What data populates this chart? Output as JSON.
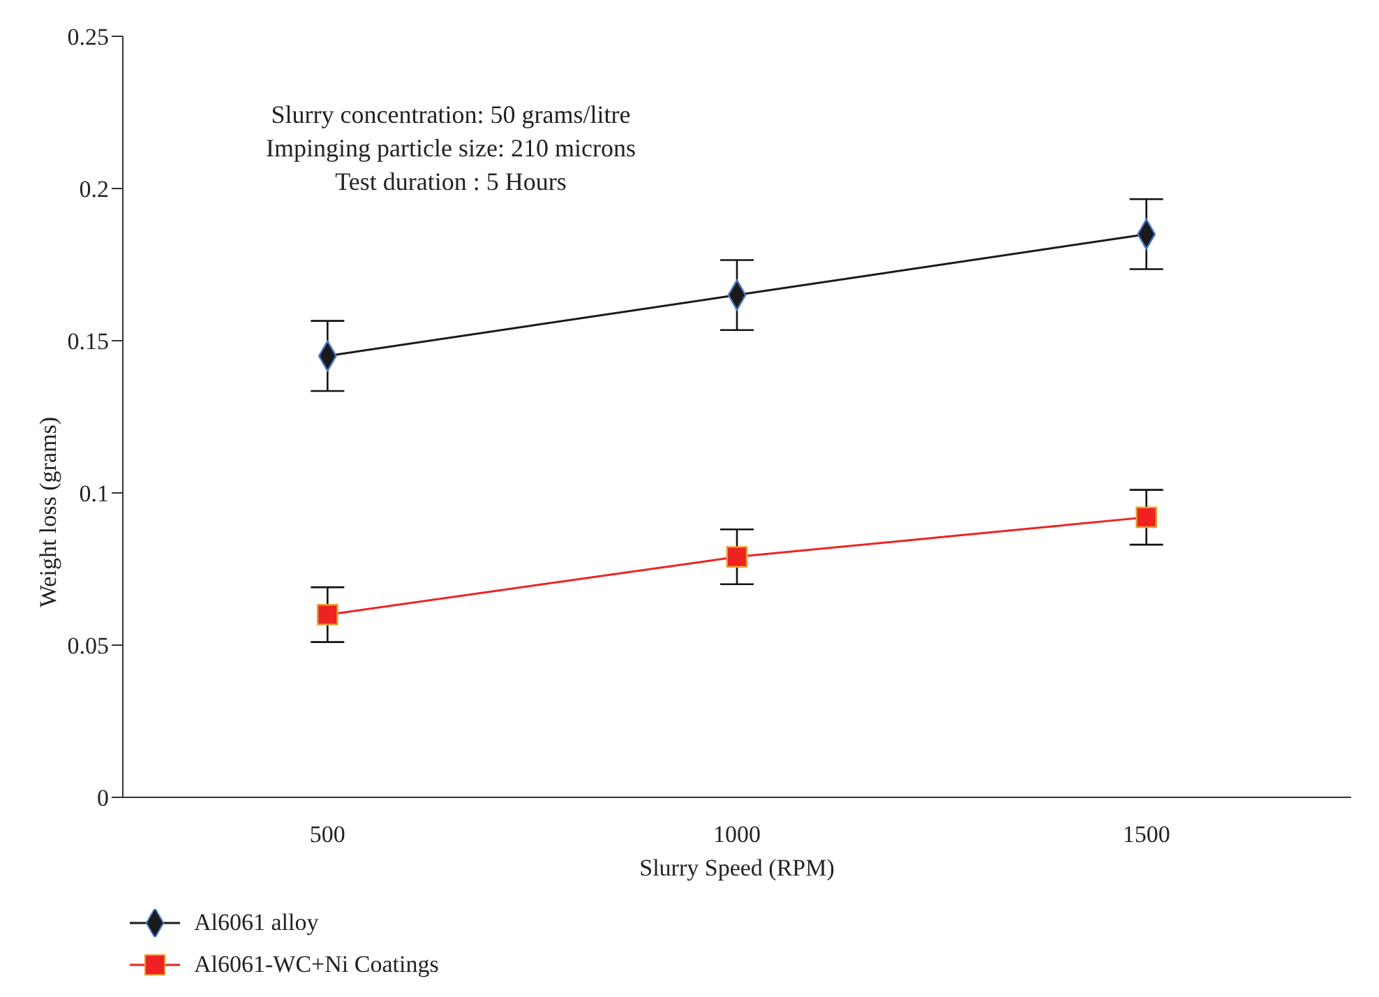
{
  "chart_data": {
    "type": "line",
    "xlabel": "Slurry Speed (RPM)",
    "ylabel": "Weight loss (grams)",
    "categories": [
      "500",
      "1000",
      "1500"
    ],
    "series": [
      {
        "name": "Al6061 alloy",
        "color": "#1a1a1a",
        "marker": "diamond",
        "values": [
          0.145,
          0.165,
          0.185
        ],
        "errors": [
          0.0115,
          0.0115,
          0.0115
        ]
      },
      {
        "name": "Al6061-WC+Ni Coatings",
        "color": "#ee2222",
        "marker": "square",
        "values": [
          0.06,
          0.079,
          0.092
        ],
        "errors": [
          0.009,
          0.009,
          0.009
        ]
      }
    ],
    "ylim": [
      0,
      0.25
    ],
    "yticks": [
      0,
      0.05,
      0.1,
      0.15,
      0.2,
      0.25
    ],
    "annotations": [
      "Slurry concentration: 50 grams/litre",
      "Impinging particle size: 210 microns",
      "Test duration : 5 Hours"
    ],
    "grid": false,
    "legend": "bottom left",
    "line_style": "solid"
  }
}
